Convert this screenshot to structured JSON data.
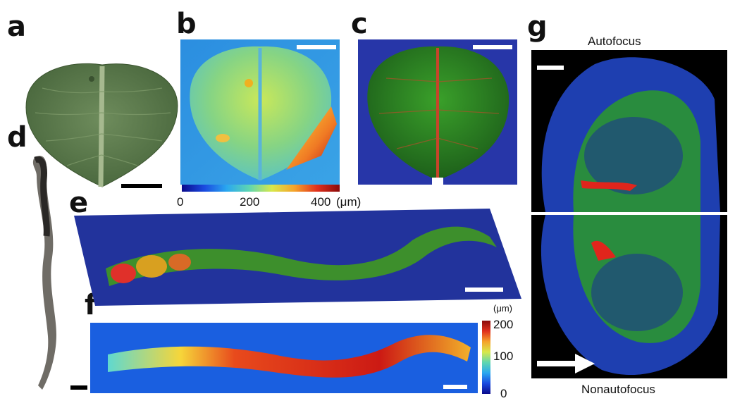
{
  "panels": {
    "a": "a",
    "b": "b",
    "c": "c",
    "d": "d",
    "e": "e",
    "f": "f",
    "g": "g"
  },
  "colorbar_b": {
    "ticks": [
      "0",
      "200",
      "400"
    ],
    "unit": "(μm)"
  },
  "colorbar_f": {
    "unit": "(μm)",
    "ticks": [
      "200",
      "100",
      "0"
    ]
  },
  "panel_g": {
    "top_label": "Autofocus",
    "bottom_label": "Nonautofocus"
  },
  "colors": {
    "leaf_green": "#5b7a4d",
    "blue_bg": "#1c3fae",
    "signal_green": "#3fbf3a",
    "signal_red": "#e02a1f"
  }
}
